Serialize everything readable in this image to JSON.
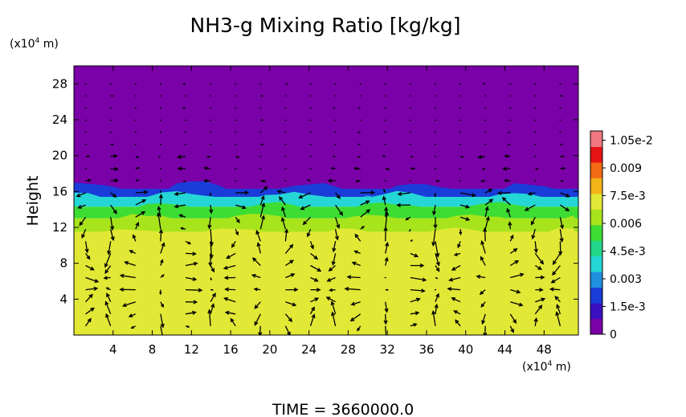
{
  "chart_data": {
    "type": "heatmap",
    "title": "NH3-g Mixing Ratio [kg/kg]",
    "ylabel": "Height",
    "x_unit_label": "(x10^4 m)",
    "y_unit_label": "(x10^4 m)",
    "footer": "TIME = 3660000.0",
    "xlim": [
      0,
      51.5
    ],
    "ylim": [
      0,
      30
    ],
    "x_ticks": [
      4,
      8,
      12,
      16,
      20,
      24,
      28,
      32,
      36,
      40,
      44,
      48
    ],
    "y_ticks": [
      4,
      8,
      12,
      16,
      20,
      24,
      28
    ],
    "colorbar": {
      "range": [
        0,
        0.011
      ],
      "tick_values": [
        0,
        0.0015,
        0.003,
        0.0045,
        0.006,
        0.0075,
        0.009,
        0.0105
      ],
      "tick_labels": [
        "0",
        "1.5e-3",
        "0.003",
        "4.5e-3",
        "0.006",
        "7.5e-3",
        "0.009",
        "1.05e-2"
      ],
      "colors": [
        "#7a00a8",
        "#3a10c0",
        "#1a3cd8",
        "#1f8fe0",
        "#25d6d6",
        "#22d68a",
        "#3ddd33",
        "#a8e41c",
        "#e2e836",
        "#f3b418",
        "#f36a14",
        "#e51414",
        "#f07880"
      ]
    },
    "layers": [
      {
        "height_range": [
          16.3,
          30
        ],
        "value": 0.0
      },
      {
        "height_range": [
          15.5,
          16.3
        ],
        "value": 0.0018
      },
      {
        "height_range": [
          14.3,
          15.5
        ],
        "value": 0.0042
      },
      {
        "height_range": [
          13.0,
          14.3
        ],
        "value": 0.0056
      },
      {
        "height_range": [
          11.5,
          13.0
        ],
        "value": 0.0064
      },
      {
        "height_range": [
          9.0,
          11.5
        ],
        "value": 0.0068
      },
      {
        "height_range": [
          0,
          9.0
        ],
        "value": 0.0071
      }
    ],
    "vector_field": "wind arrows on regular grid"
  }
}
